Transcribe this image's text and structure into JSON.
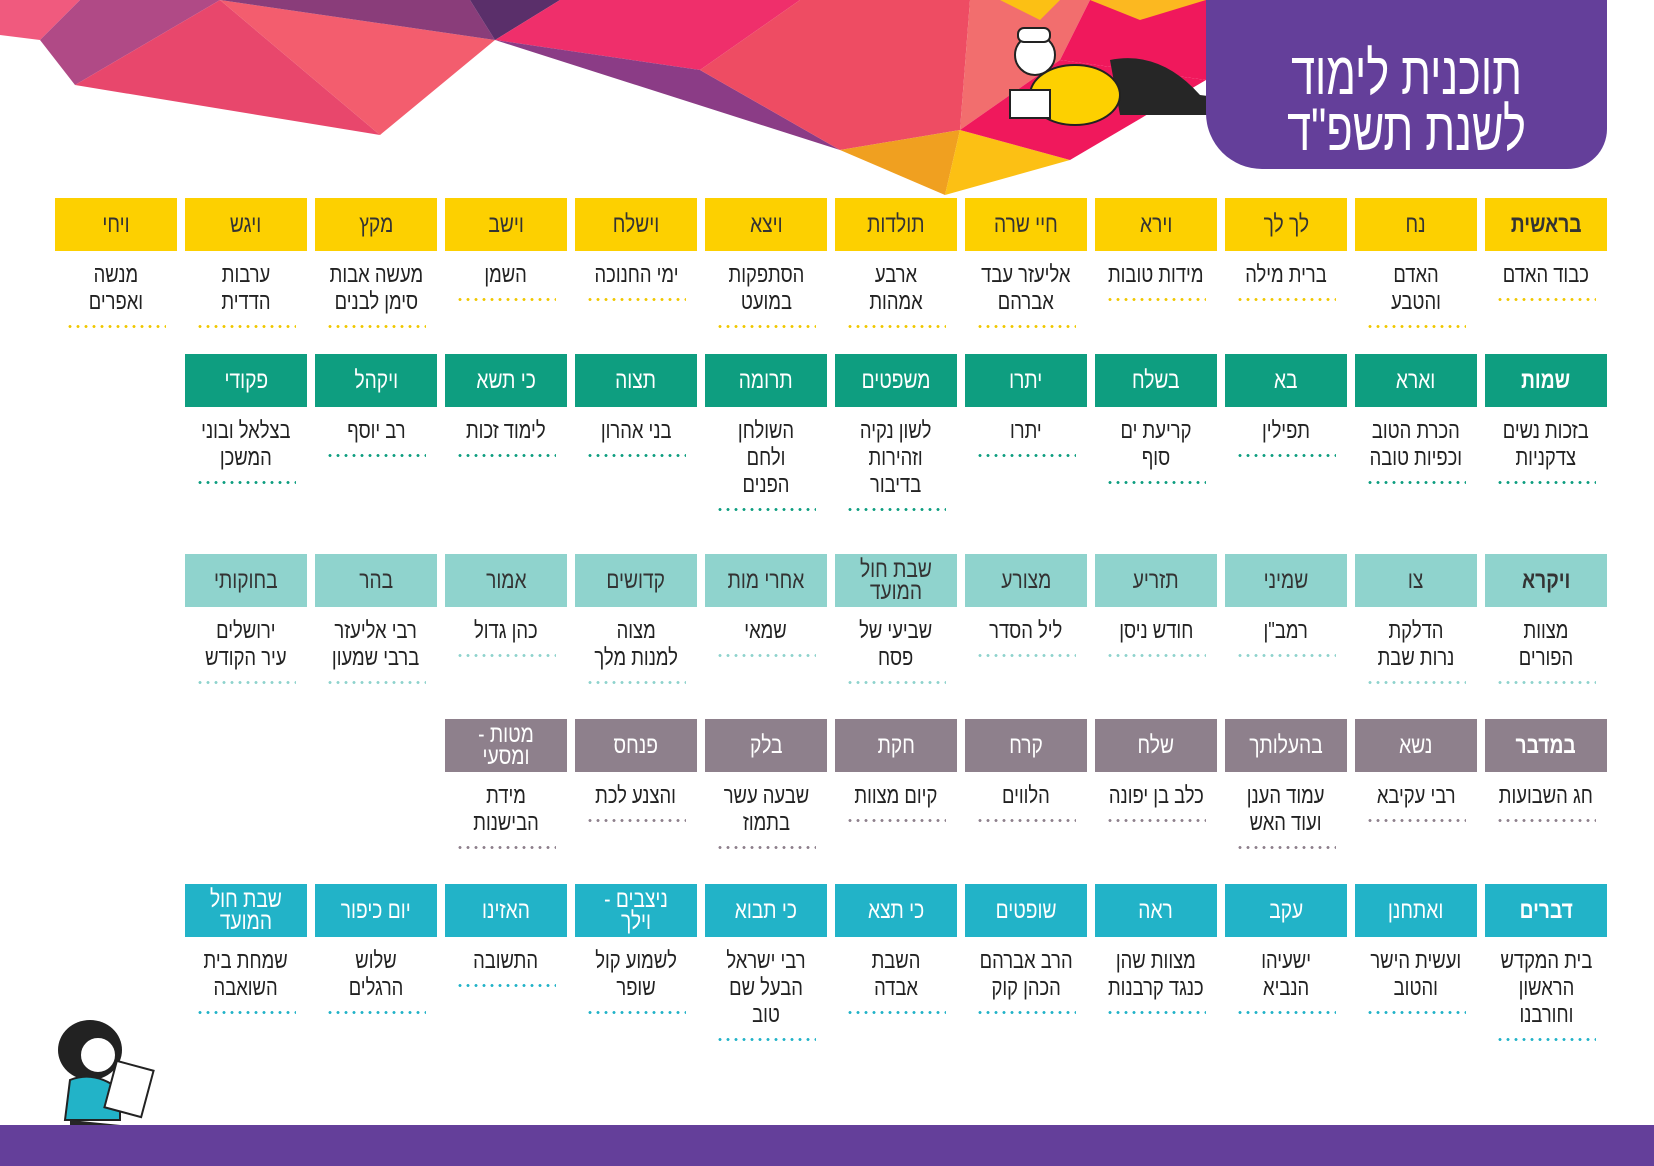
{
  "title": {
    "line1": "תוכנית לימוד",
    "line2": "לשנת תשפ\"ד"
  },
  "colors": {
    "purple": "#643f9a"
  },
  "illustrations": [
    "boy-reading-lying-down",
    "girl-reading-sitting"
  ],
  "rows": [
    {
      "book": "בראשית",
      "color": "#fdd000",
      "text_color": "#333333",
      "dot_color": "#f0c800",
      "start_col": 0,
      "items": [
        {
          "parasha": "בראשית",
          "topic": "כבוד האדם"
        },
        {
          "parasha": "נח",
          "topic": "האדם והטבע"
        },
        {
          "parasha": "לך לך",
          "topic": "ברית מילה"
        },
        {
          "parasha": "וירא",
          "topic": "מידות טובות"
        },
        {
          "parasha": "חיי שרה",
          "topic": "אליעזר עבד\nאברהם"
        },
        {
          "parasha": "תולדות",
          "topic": "ארבע אמהות"
        },
        {
          "parasha": "ויצא",
          "topic": "הסתפקות\nבמועט"
        },
        {
          "parasha": "וישלח",
          "topic": "ימי החנוכה"
        },
        {
          "parasha": "וישב",
          "topic": "השמן"
        },
        {
          "parasha": "מקץ",
          "topic": "מעשה אבות\nסימן לבנים"
        },
        {
          "parasha": "ויגש",
          "topic": "ערבות הדדית"
        },
        {
          "parasha": "ויחי",
          "topic": "מנשה\nואפרים"
        }
      ]
    },
    {
      "book": "שמות",
      "color": "#0e9e80",
      "text_color": "#ffffff",
      "dot_color": "#0e9e80",
      "start_col": 0,
      "items": [
        {
          "parasha": "שמות",
          "topic": "בזכות נשים\nצדקניות"
        },
        {
          "parasha": "וארא",
          "topic": "הכרת הטוב\nוכפיות טובה"
        },
        {
          "parasha": "בא",
          "topic": "תפילין"
        },
        {
          "parasha": "בשלח",
          "topic": "קריעת ים סוף"
        },
        {
          "parasha": "יתרו",
          "topic": "יתרו"
        },
        {
          "parasha": "משפטים",
          "topic": "לשון נקיה\nוזהירות\nבדיבור"
        },
        {
          "parasha": "תרומה",
          "topic": "השולחן ולחם\nהפנים"
        },
        {
          "parasha": "תצוה",
          "topic": "בני אהרון"
        },
        {
          "parasha": "כי תשא",
          "topic": "לימוד זכות"
        },
        {
          "parasha": "ויקהל",
          "topic": "רב יוסף"
        },
        {
          "parasha": "פקודי",
          "topic": "בצלאל ובוני\nהמשכן"
        }
      ]
    },
    {
      "book": "ויקרא",
      "color": "#8fd3cd",
      "text_color": "#333333",
      "dot_color": "#8fd3cd",
      "start_col": 0,
      "items": [
        {
          "parasha": "ויקרא",
          "topic": "מצוות\nהפורים"
        },
        {
          "parasha": "צו",
          "topic": "הדלקת\nנרות שבת"
        },
        {
          "parasha": "שמיני",
          "topic": "רמב\"ן"
        },
        {
          "parasha": "תזריע",
          "topic": "חודש ניסן"
        },
        {
          "parasha": "מצורע",
          "topic": "ליל הסדר"
        },
        {
          "parasha": "שבת חול\nהמועד",
          "topic": "שביעי של\nפסח"
        },
        {
          "parasha": "אחרי מות",
          "topic": "שמאי"
        },
        {
          "parasha": "קדושים",
          "topic": "מצוה\nלמנות מלך"
        },
        {
          "parasha": "אמור",
          "topic": "כהן גדול"
        },
        {
          "parasha": "בהר",
          "topic": "רבי אליעזר\nברבי שמעון"
        },
        {
          "parasha": "בחוקותי",
          "topic": "ירושלים\nעיר הקודש"
        }
      ]
    },
    {
      "book": "במדבר",
      "color": "#8e808c",
      "text_color": "#ffffff",
      "dot_color": "#8e808c",
      "start_col": 0,
      "items": [
        {
          "parasha": "במדבר",
          "topic": "חג השבועות"
        },
        {
          "parasha": "נשא",
          "topic": "רבי עקיבא"
        },
        {
          "parasha": "בהעלותך",
          "topic": "עמוד הענן\nועוד האש"
        },
        {
          "parasha": "שלח",
          "topic": "כלב בן יפונה"
        },
        {
          "parasha": "קרח",
          "topic": "הלווים"
        },
        {
          "parasha": "חקת",
          "topic": "קיום מצוות"
        },
        {
          "parasha": "בלק",
          "topic": "שבעה עשר\nבתמוז"
        },
        {
          "parasha": "פנחס",
          "topic": "והצנע לכת"
        },
        {
          "parasha": "מטות - ומסעי",
          "topic": "מידת הבישנות"
        }
      ]
    },
    {
      "book": "דברים",
      "color": "#22b3c8",
      "text_color": "#ffffff",
      "dot_color": "#22b3c8",
      "start_col": 0,
      "items": [
        {
          "parasha": "דברים",
          "topic": "בית המקדש\nהראשון\nוחורבנו"
        },
        {
          "parasha": "ואתחנן",
          "topic": "ועשית הישר\nוהטוב"
        },
        {
          "parasha": "עקב",
          "topic": "ישעיהו\nהנביא"
        },
        {
          "parasha": "ראה",
          "topic": "מצוות שהן\nכנגד קרבנות"
        },
        {
          "parasha": "שופטים",
          "topic": "הרב אברהם\nהכהן קוק"
        },
        {
          "parasha": "כי תצא",
          "topic": "השבת אבדה"
        },
        {
          "parasha": "כי תבוא",
          "topic": "רבי ישראל\nהבעל שם טוב"
        },
        {
          "parasha": "ניצבים - וילך",
          "topic": "לשמוע קול\nשופר"
        },
        {
          "parasha": "האזינו",
          "topic": "התשובה"
        },
        {
          "parasha": "יום כיפור",
          "topic": "שלוש הרגלים"
        },
        {
          "parasha": "שבת חול\nהמועד",
          "topic": "שמחת בית\nהשואבה"
        }
      ]
    }
  ]
}
